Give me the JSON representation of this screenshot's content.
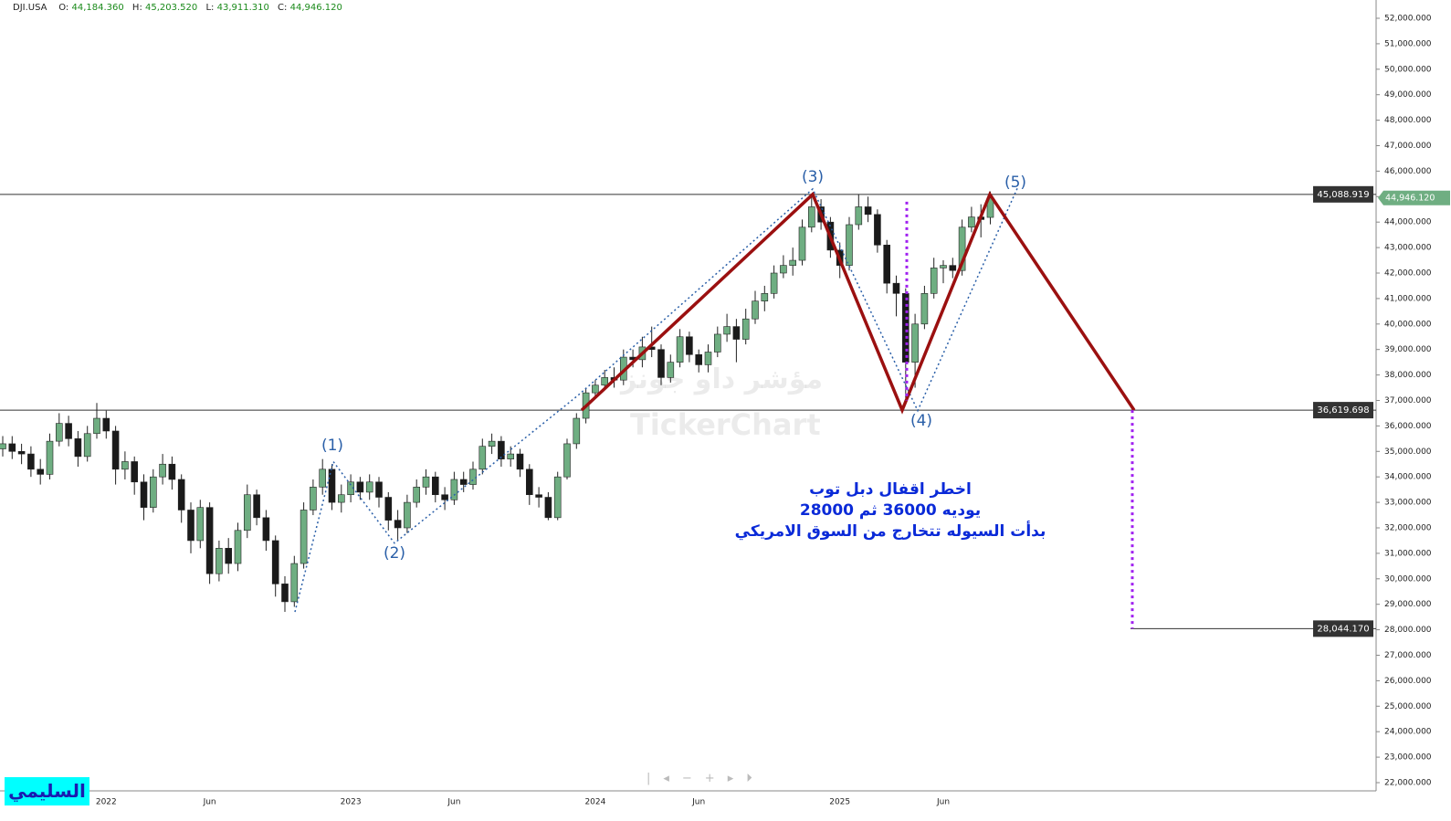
{
  "header": {
    "symbol": "DJI.USA",
    "fields": [
      {
        "key": "O:",
        "value": "44,184.360"
      },
      {
        "key": "H:",
        "value": "45,203.520"
      },
      {
        "key": "L:",
        "value": "43,911.310"
      },
      {
        "key": "C:",
        "value": "44,946.120"
      }
    ]
  },
  "chart_data": {
    "type": "candlestick",
    "categories": [
      null,
      null,
      null,
      null,
      null,
      null,
      null,
      null,
      null,
      null,
      null,
      "2022",
      null,
      null,
      null,
      null,
      null,
      null,
      null,
      null,
      null,
      null,
      "Jun",
      null,
      null,
      null,
      null,
      null,
      null,
      null,
      null,
      null,
      null,
      null,
      null,
      null,
      null,
      "2023",
      null,
      null,
      null,
      null,
      null,
      null,
      null,
      null,
      null,
      null,
      "Jun",
      null,
      null,
      null,
      null,
      null,
      null,
      null,
      null,
      null,
      null,
      null,
      null,
      null,
      null,
      "2024",
      null,
      null,
      null,
      null,
      null,
      null,
      null,
      null,
      null,
      null,
      "Jun",
      null,
      null,
      null,
      null,
      null,
      null,
      null,
      null,
      null,
      null,
      null,
      null,
      null,
      null,
      "2025",
      null,
      null,
      null,
      null,
      null,
      null,
      null,
      null,
      null,
      null,
      "Jun",
      null,
      null,
      null,
      null,
      null
    ],
    "open": [
      35100,
      35300,
      35000,
      34900,
      34300,
      34100,
      35400,
      36100,
      35500,
      34800,
      35700,
      36300,
      35800,
      34300,
      34600,
      33800,
      32800,
      34000,
      34500,
      33900,
      32700,
      31500,
      32800,
      30200,
      31200,
      30600,
      31900,
      33300,
      32400,
      31500,
      29800,
      29100,
      30600,
      32700,
      33600,
      34300,
      33000,
      33300,
      33800,
      33400,
      33800,
      33200,
      32300,
      32000,
      33000,
      33600,
      34000,
      33300,
      33100,
      33900,
      33700,
      34300,
      35200,
      35400,
      34700,
      34900,
      34300,
      33300,
      33200,
      32400,
      34000,
      35300,
      36300,
      37300,
      37600,
      37900,
      37800,
      38700,
      38600,
      39100,
      39000,
      37900,
      38500,
      39500,
      38800,
      38400,
      38900,
      39600,
      39900,
      39400,
      40200,
      40900,
      41200,
      42000,
      42300,
      42500,
      43800,
      44600,
      44000,
      42900,
      42300,
      43900,
      44600,
      44300,
      43100,
      41600,
      41200,
      38500,
      40000,
      41200,
      42200,
      42300,
      42100,
      43800,
      44200,
      44184.36
    ],
    "high": [
      35600,
      35600,
      35300,
      35200,
      34700,
      35700,
      36500,
      36400,
      35800,
      36000,
      36900,
      36600,
      36000,
      35000,
      34800,
      34100,
      34300,
      34900,
      34800,
      34100,
      33000,
      33100,
      33000,
      31500,
      31600,
      32200,
      33700,
      33500,
      32700,
      31700,
      30100,
      30900,
      33000,
      33900,
      34700,
      34500,
      33700,
      34100,
      34000,
      34100,
      34000,
      33400,
      32700,
      33300,
      33900,
      34300,
      34200,
      33600,
      34200,
      34200,
      34600,
      35500,
      35700,
      35600,
      35200,
      35100,
      34500,
      33600,
      33400,
      34200,
      35500,
      36500,
      37500,
      37800,
      38200,
      38300,
      39000,
      39000,
      39500,
      39900,
      39200,
      38800,
      39800,
      39700,
      39000,
      39200,
      39900,
      40400,
      40200,
      40600,
      41300,
      41500,
      42300,
      42700,
      43000,
      44100,
      45100,
      44900,
      44200,
      43200,
      44200,
      45100,
      45000,
      44500,
      43300,
      41900,
      41400,
      40400,
      41500,
      42600,
      42500,
      42600,
      44100,
      44600,
      44700,
      45203.52
    ],
    "low": [
      34800,
      34700,
      34500,
      34000,
      33700,
      33900,
      35200,
      35200,
      34400,
      34600,
      35500,
      35500,
      33700,
      33900,
      33300,
      32300,
      32600,
      33700,
      33500,
      32200,
      31000,
      31200,
      29800,
      29900,
      30200,
      30300,
      31600,
      32100,
      31100,
      29300,
      28700,
      28900,
      30400,
      32500,
      33300,
      32700,
      32600,
      33000,
      33100,
      33100,
      32800,
      31900,
      31500,
      31800,
      32800,
      33300,
      33000,
      32700,
      32900,
      33400,
      33500,
      34100,
      34900,
      34400,
      34400,
      34000,
      32900,
      32800,
      32300,
      32300,
      33900,
      35100,
      36100,
      37100,
      37400,
      37500,
      37600,
      38300,
      38300,
      38700,
      37600,
      37700,
      38300,
      38500,
      38100,
      38100,
      38700,
      39300,
      38500,
      39200,
      40000,
      40500,
      41000,
      41800,
      41900,
      42300,
      43600,
      43700,
      42600,
      41800,
      42100,
      43700,
      44000,
      42800,
      41200,
      40300,
      37100,
      37500,
      39800,
      41000,
      41600,
      41800,
      41900,
      43600,
      43400,
      43911.31
    ],
    "close": [
      35300,
      35000,
      34900,
      34300,
      34100,
      35400,
      36100,
      35500,
      34800,
      35700,
      36300,
      35800,
      34300,
      34600,
      33800,
      32800,
      34000,
      34500,
      33900,
      32700,
      31500,
      32800,
      30200,
      31200,
      30600,
      31900,
      33300,
      32400,
      31500,
      29800,
      29100,
      30600,
      32700,
      33600,
      34300,
      33000,
      33300,
      33800,
      33400,
      33800,
      33200,
      32300,
      32000,
      33000,
      33600,
      34000,
      33300,
      33100,
      33900,
      33700,
      34300,
      35200,
      35400,
      34700,
      34900,
      34300,
      33300,
      33200,
      32400,
      34000,
      35300,
      36300,
      37300,
      37600,
      37900,
      37800,
      38700,
      38600,
      39100,
      39000,
      37900,
      38500,
      39500,
      38800,
      38400,
      38900,
      39600,
      39900,
      39400,
      40200,
      40900,
      41200,
      42000,
      42300,
      42500,
      43800,
      44600,
      44000,
      42900,
      42300,
      43900,
      44600,
      44300,
      43100,
      41600,
      41200,
      38500,
      40000,
      41200,
      42200,
      42300,
      42100,
      43800,
      44200,
      44100,
      44946.12
    ],
    "up_color": "#6fae82",
    "down_color": "#1a1a1a",
    "ylim": [
      21677,
      52717
    ],
    "yticks": [
      {
        "value": 22000,
        "label": "22,000.000"
      },
      {
        "value": 23000,
        "label": "23,000.000"
      },
      {
        "value": 24000,
        "label": "24,000.000"
      },
      {
        "value": 25000,
        "label": "25,000.000"
      },
      {
        "value": 26000,
        "label": "26,000.000"
      },
      {
        "value": 27000,
        "label": "27,000.000"
      },
      {
        "value": 28000,
        "label": "28,000.000"
      },
      {
        "value": 29000,
        "label": "29,000.000"
      },
      {
        "value": 30000,
        "label": "30,000.000"
      },
      {
        "value": 31000,
        "label": "31,000.000"
      },
      {
        "value": 32000,
        "label": "32,000.000"
      },
      {
        "value": 33000,
        "label": "33,000.000"
      },
      {
        "value": 34000,
        "label": "34,000.000"
      },
      {
        "value": 35000,
        "label": "35,000.000"
      },
      {
        "value": 36000,
        "label": "36,000.000"
      },
      {
        "value": 37000,
        "label": "37,000.000"
      },
      {
        "value": 38000,
        "label": "38,000.000"
      },
      {
        "value": 39000,
        "label": "39,000.000"
      },
      {
        "value": 40000,
        "label": "40,000.000"
      },
      {
        "value": 41000,
        "label": "41,000.000"
      },
      {
        "value": 42000,
        "label": "42,000.000"
      },
      {
        "value": 43000,
        "label": "43,000.000"
      },
      {
        "value": 44000,
        "label": "44,000.000"
      },
      {
        "value": 45000,
        "label": "45,000.000"
      },
      {
        "value": 46000,
        "label": "46,000.000"
      },
      {
        "value": 47000,
        "label": "47,000.000"
      },
      {
        "value": 48000,
        "label": "48,000.000"
      },
      {
        "value": 49000,
        "label": "49,000.000"
      },
      {
        "value": 50000,
        "label": "50,000.000"
      },
      {
        "value": 51000,
        "label": "51,000.000"
      },
      {
        "value": 52000,
        "label": "52,000.000"
      }
    ],
    "price_lines": [
      {
        "value": 45088.919,
        "label": "45,088.919"
      },
      {
        "value": 36619.698,
        "label": "36,619.698"
      },
      {
        "value": 28044.17,
        "label": "28,044.170"
      }
    ],
    "last_price": {
      "value": 44946.12,
      "label": "44,946.120"
    },
    "pattern": [
      36619.698,
      45088.919,
      36619.698,
      45088.919,
      36619.698
    ],
    "wave_path": [
      28700,
      34600,
      31400,
      37200,
      45300,
      36600,
      45400
    ],
    "wave_labels": [
      "(1)",
      "(2)",
      "(3)",
      "(4)",
      "(5)"
    ],
    "purple_line": [
      44800,
      37000
    ],
    "target_line": [
      36619.698,
      28044.17
    ]
  },
  "note": [
    "اخطر اقفال دبل توب",
    "يوديه 36000 ثم 28000",
    "بدأت السيوله تتخارج من السوق الامريكي"
  ],
  "watermark": [
    "مؤشر داو جونز",
    "TickerChart"
  ],
  "author": "السليمي"
}
